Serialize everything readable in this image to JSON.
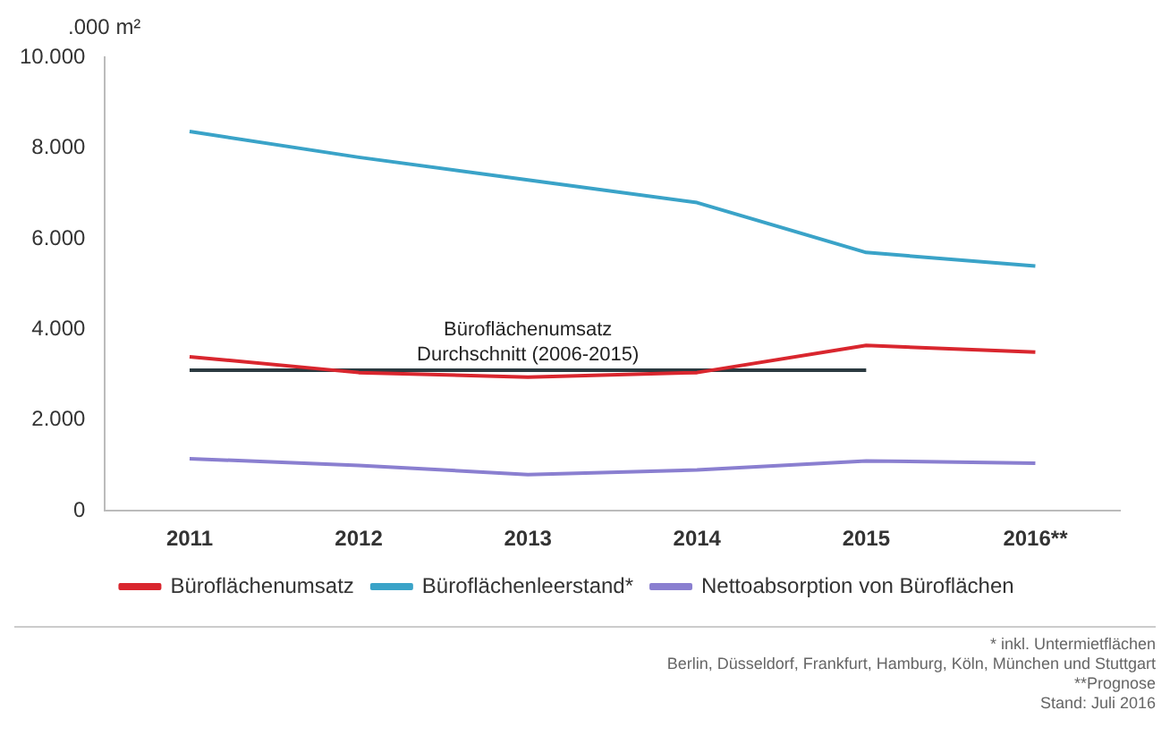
{
  "chart_data": {
    "type": "line",
    "ylabel": ".000 m²",
    "categories": [
      "2011",
      "2012",
      "2013",
      "2014",
      "2015",
      "2016**"
    ],
    "series": [
      {
        "name": "Büroflächenumsatz",
        "color": "#d9262e",
        "values": [
          3400,
          3050,
          2950,
          3050,
          3650,
          3500
        ]
      },
      {
        "name": "Büroflächenleerstand*",
        "color": "#3aa3c8",
        "values": [
          8370,
          7800,
          7300,
          6800,
          5700,
          5400
        ]
      },
      {
        "name": "Nettoabsorption von Büroflächen",
        "color": "#8a7fd0",
        "values": [
          1150,
          1000,
          800,
          900,
          1100,
          1050
        ]
      },
      {
        "name": "Büroflächenumsatz\nDurchschnitt (2006-2015)",
        "color": "#2b3a40",
        "values": [
          3100,
          3100,
          3100,
          3100,
          3100,
          null
        ]
      }
    ],
    "ylim": [
      0,
      10000
    ],
    "yticks": [
      {
        "value": 0,
        "label": "0"
      },
      {
        "value": 2000,
        "label": "2.000"
      },
      {
        "value": 4000,
        "label": "4.000"
      },
      {
        "value": 6000,
        "label": "6.000"
      },
      {
        "value": 8000,
        "label": "8.000"
      },
      {
        "value": 10000,
        "label": "10.000"
      }
    ],
    "grid": false,
    "legend": "bottom",
    "marker": "none",
    "line_style": "solid",
    "annotations": [
      "* inkl. Untermietflächen",
      "Berlin, Düsseldorf, Frankfurt, Hamburg, Köln, München und Stuttgart",
      "**Prognose",
      "Stand: Juli 2016"
    ]
  }
}
